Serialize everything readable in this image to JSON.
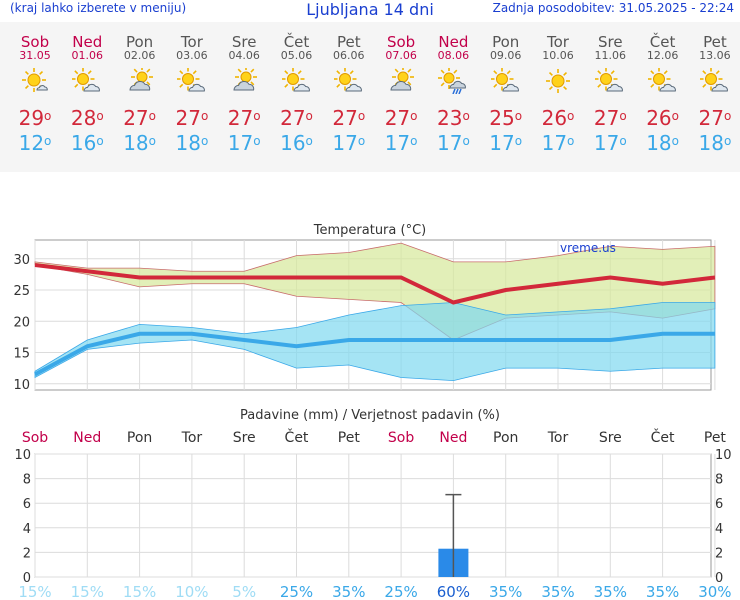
{
  "header": {
    "menu_hint": "(kraj lahko izberete v meniju)",
    "title": "Ljubljana 14 dni",
    "updated": "Zadnja posodobitev: 31.05.2025 - 22:24"
  },
  "days": [
    {
      "name": "Sob",
      "date": "31.05",
      "weekend": true,
      "icon": "sun-partly-cloudy-icon",
      "tmax": "29",
      "tmin": "12"
    },
    {
      "name": "Ned",
      "date": "01.06",
      "weekend": true,
      "icon": "sun-cloud-icon",
      "tmax": "28",
      "tmin": "16"
    },
    {
      "name": "Pon",
      "date": "02.06",
      "weekend": false,
      "icon": "cloud-sun-icon",
      "tmax": "27",
      "tmin": "18"
    },
    {
      "name": "Tor",
      "date": "03.06",
      "weekend": false,
      "icon": "sun-cloud-icon",
      "tmax": "27",
      "tmin": "18"
    },
    {
      "name": "Sre",
      "date": "04.06",
      "weekend": false,
      "icon": "cloud-sun-icon",
      "tmax": "27",
      "tmin": "17"
    },
    {
      "name": "Čet",
      "date": "05.06",
      "weekend": false,
      "icon": "sun-cloud-icon",
      "tmax": "27",
      "tmin": "16"
    },
    {
      "name": "Pet",
      "date": "06.06",
      "weekend": false,
      "icon": "sun-cloud-icon",
      "tmax": "27",
      "tmin": "17"
    },
    {
      "name": "Sob",
      "date": "07.06",
      "weekend": true,
      "icon": "cloud-sun-icon",
      "tmax": "27",
      "tmin": "17"
    },
    {
      "name": "Ned",
      "date": "08.06",
      "weekend": true,
      "icon": "sun-rain-icon",
      "tmax": "23",
      "tmin": "17"
    },
    {
      "name": "Pon",
      "date": "09.06",
      "weekend": false,
      "icon": "sun-cloud-icon",
      "tmax": "25",
      "tmin": "17"
    },
    {
      "name": "Tor",
      "date": "10.06",
      "weekend": false,
      "icon": "sun-icon",
      "tmax": "26",
      "tmin": "17"
    },
    {
      "name": "Sre",
      "date": "11.06",
      "weekend": false,
      "icon": "sun-cloud-icon",
      "tmax": "27",
      "tmin": "17"
    },
    {
      "name": "Čet",
      "date": "12.06",
      "weekend": false,
      "icon": "sun-cloud-icon",
      "tmax": "26",
      "tmin": "18"
    },
    {
      "name": "Pet",
      "date": "13.06",
      "weekend": false,
      "icon": "sun-cloud-icon",
      "tmax": "27",
      "tmin": "18"
    }
  ],
  "degree_symbol": "o",
  "colors": {
    "tmax": "#d2283a",
    "tmin": "#3aa8e8",
    "weekend": "#c2004a",
    "precip_bar": "#2a8ae8"
  },
  "chart_data": [
    {
      "type": "line",
      "title": "Temperatura (°C)",
      "watermark": "vreme.us",
      "ylim": [
        9,
        33
      ],
      "yticks": [
        10,
        15,
        20,
        25,
        30
      ],
      "x": [
        1,
        2,
        3,
        4,
        5,
        6,
        7,
        8,
        9,
        10,
        11,
        12,
        13,
        14
      ],
      "series": [
        {
          "values": [
            29,
            28,
            27,
            27,
            27,
            27,
            27,
            27,
            23,
            25,
            26,
            27,
            26,
            27
          ]
        },
        {
          "values": [
            11.5,
            16,
            18,
            18,
            17,
            16,
            17,
            17,
            17,
            17,
            17,
            17,
            18,
            18
          ]
        }
      ],
      "tmax_band_high": [
        29.5,
        28.5,
        28.5,
        28,
        28,
        30.5,
        31,
        32.5,
        29.5,
        29.5,
        30.5,
        32,
        31.5,
        32
      ],
      "tmax_band_low": [
        29,
        27.5,
        25.5,
        26,
        26,
        24,
        23.5,
        23,
        17,
        20.5,
        21,
        21.5,
        20.5,
        22
      ],
      "tmin_band_high": [
        12,
        17,
        19.5,
        19,
        18,
        19,
        21,
        22.5,
        23,
        21,
        21.5,
        22,
        23,
        23
      ],
      "tmin_band_low": [
        11,
        15.5,
        16.5,
        17,
        15.5,
        12.5,
        13,
        11,
        10.5,
        12.5,
        12.5,
        12,
        12.5,
        12.5
      ],
      "grid": true
    },
    {
      "type": "bar",
      "title": "Padavine (mm) / Verjetnost padavin (%)",
      "categories": [
        "Sob",
        "Ned",
        "Pon",
        "Tor",
        "Sre",
        "Čet",
        "Pet",
        "Sob",
        "Ned",
        "Pon",
        "Tor",
        "Sre",
        "Čet",
        "Pet"
      ],
      "weekend": [
        true,
        true,
        false,
        false,
        false,
        false,
        false,
        true,
        true,
        false,
        false,
        false,
        false,
        false
      ],
      "values": [
        0,
        0,
        0,
        0,
        0,
        0,
        0,
        0,
        2.3,
        0,
        0,
        0,
        0,
        0
      ],
      "error_high": [
        null,
        null,
        null,
        null,
        null,
        null,
        null,
        null,
        6.7,
        null,
        null,
        null,
        null,
        null
      ],
      "probability": [
        "15%",
        "15%",
        "15%",
        "10%",
        "5%",
        "25%",
        "35%",
        "25%",
        "60%",
        "35%",
        "35%",
        "35%",
        "35%",
        "30%"
      ],
      "ylim": [
        0,
        10
      ],
      "yticks": [
        0,
        2,
        4,
        6,
        8,
        10
      ],
      "grid": true
    }
  ]
}
